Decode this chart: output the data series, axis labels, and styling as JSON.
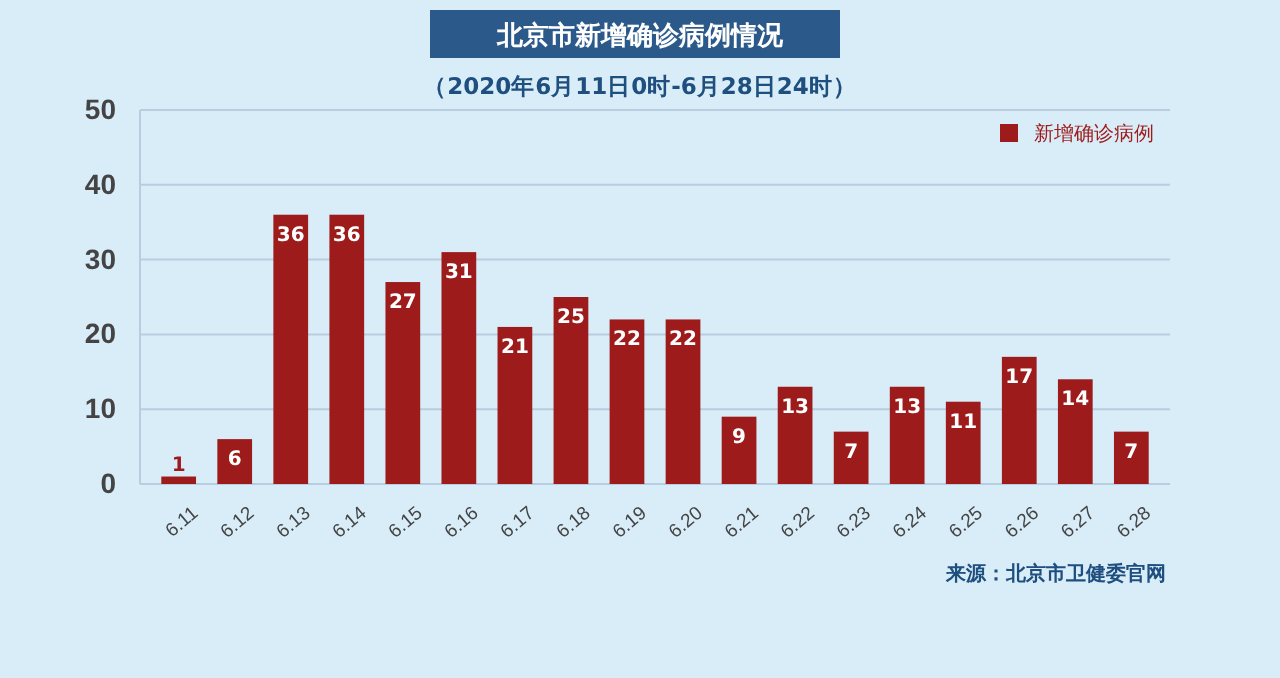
{
  "chart_data": {
    "type": "bar",
    "title": "北京市新增确诊病例情况",
    "subtitle": "（2020年6月11日0时-6月28日24时）",
    "categories": [
      "6.11",
      "6.12",
      "6.13",
      "6.14",
      "6.15",
      "6.16",
      "6.17",
      "6.18",
      "6.19",
      "6.20",
      "6.21",
      "6.22",
      "6.23",
      "6.24",
      "6.25",
      "6.26",
      "6.27",
      "6.28"
    ],
    "series": [
      {
        "name": "新增确诊病例",
        "color": "#9e1b1b",
        "values": [
          1,
          6,
          36,
          36,
          27,
          31,
          21,
          25,
          22,
          22,
          9,
          13,
          7,
          13,
          11,
          17,
          14,
          7
        ]
      }
    ],
    "ylim": [
      0,
      50
    ],
    "yticks": [
      0,
      10,
      20,
      30,
      40,
      50
    ],
    "grid": "y",
    "legend": "top right",
    "data_labels": true,
    "annotations": [
      "来源：北京市卫健委官网"
    ]
  }
}
